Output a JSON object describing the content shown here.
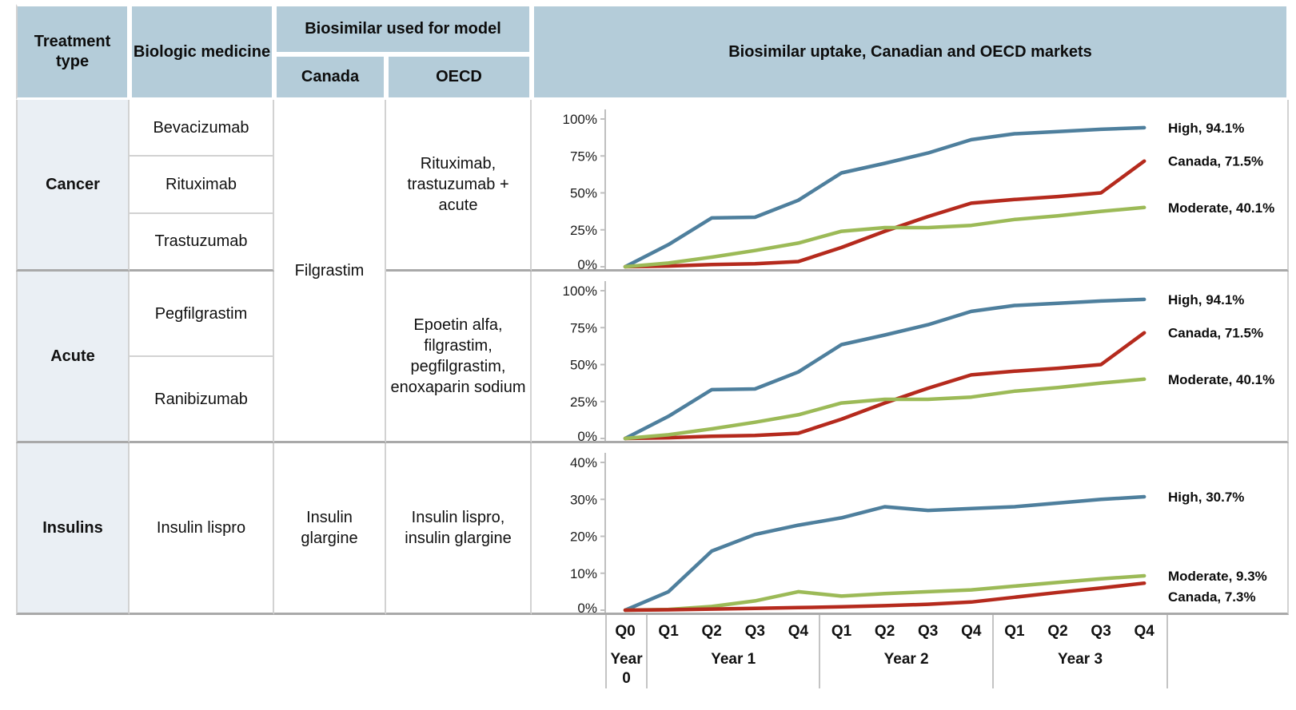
{
  "table": {
    "headers": {
      "treatment_type": "Treatment type",
      "biologic_medicine": "Biologic medicine",
      "biosimilar_model": "Biosimilar used for model",
      "canada": "Canada",
      "oecd": "OECD",
      "uptake": "Biosimilar uptake, Canadian and OECD markets"
    },
    "canada_spanning": "Filgrastim",
    "rows": [
      {
        "treatment": "Cancer",
        "biologics": [
          "Bevacizumab",
          "Rituximab",
          "Trastuzumab"
        ],
        "oecd": "Rituximab, trastuzumab + acute"
      },
      {
        "treatment": "Acute",
        "biologics": [
          "Pegfilgrastim",
          "Ranibizumab"
        ],
        "oecd": "Epoetin alfa, filgrastim, pegfilgrastim, enoxaparin sodium"
      },
      {
        "treatment": "Insulins",
        "biologics": [
          "Insulin lispro"
        ],
        "canada": "Insulin glargine",
        "oecd": "Insulin lispro, insulin glargine"
      }
    ]
  },
  "axis": {
    "quarters": [
      "Q0",
      "Q1",
      "Q2",
      "Q3",
      "Q4",
      "Q1",
      "Q2",
      "Q3",
      "Q4",
      "Q1",
      "Q2",
      "Q3",
      "Q4"
    ],
    "year_groups": [
      {
        "label": "Year 0",
        "quarters": 1
      },
      {
        "label": "Year 1",
        "quarters": 4
      },
      {
        "label": "Year 2",
        "quarters": 4
      },
      {
        "label": "Year 3",
        "quarters": 4
      }
    ]
  },
  "colors": {
    "high": "#4e7f9d",
    "canada": "#b52a1d",
    "moderate": "#9cba57",
    "header_bg": "#b4ccd9",
    "rowlabel_bg": "#eaeff4",
    "axis_gray": "#bfbfbf"
  },
  "chart_data": [
    {
      "type": "line",
      "title": "Biosimilar uptake, cancer (rituximab, trastuzumab + acute model)",
      "x": [
        "Y0Q0",
        "Y1Q1",
        "Y1Q2",
        "Y1Q3",
        "Y1Q4",
        "Y2Q1",
        "Y2Q2",
        "Y2Q3",
        "Y2Q4",
        "Y3Q1",
        "Y3Q2",
        "Y3Q3",
        "Y3Q4"
      ],
      "ylim": [
        0,
        100
      ],
      "yticks": [
        100,
        75,
        50,
        25,
        0
      ],
      "series": [
        {
          "name": "High",
          "color": "#4e7f9d",
          "end_label": "High, 94.1%",
          "values": [
            0,
            15,
            33,
            33.5,
            45,
            63.5,
            70,
            77,
            86,
            90,
            91.5,
            93,
            94.1
          ]
        },
        {
          "name": "Canada",
          "color": "#b52a1d",
          "end_label": "Canada, 71.5%",
          "values": [
            0,
            0.5,
            1.5,
            2,
            3.5,
            13,
            24,
            34,
            43,
            45.5,
            47.5,
            50,
            71.5
          ]
        },
        {
          "name": "Moderate",
          "color": "#9cba57",
          "end_label": "Moderate, 40.1%",
          "values": [
            0,
            2.5,
            6.5,
            11,
            16,
            24,
            26.5,
            26.5,
            28,
            32,
            34.5,
            37.5,
            40.1
          ]
        }
      ]
    },
    {
      "type": "line",
      "title": "Biosimilar uptake, acute (epoetin alfa, filgrastim, pegfilgrastim, enoxaparin sodium model)",
      "x": [
        "Y0Q0",
        "Y1Q1",
        "Y1Q2",
        "Y1Q3",
        "Y1Q4",
        "Y2Q1",
        "Y2Q2",
        "Y2Q3",
        "Y2Q4",
        "Y3Q1",
        "Y3Q2",
        "Y3Q3",
        "Y3Q4"
      ],
      "ylim": [
        0,
        100
      ],
      "yticks": [
        100,
        75,
        50,
        25,
        0
      ],
      "series": [
        {
          "name": "High",
          "color": "#4e7f9d",
          "end_label": "High, 94.1%",
          "values": [
            0,
            15,
            33,
            33.5,
            45,
            63.5,
            70,
            77,
            86,
            90,
            91.5,
            93,
            94.1
          ]
        },
        {
          "name": "Canada",
          "color": "#b52a1d",
          "end_label": "Canada, 71.5%",
          "values": [
            0,
            0.5,
            1.5,
            2,
            3.5,
            13,
            24,
            34,
            43,
            45.5,
            47.5,
            50,
            71.5
          ]
        },
        {
          "name": "Moderate",
          "color": "#9cba57",
          "end_label": "Moderate, 40.1%",
          "values": [
            0,
            2.5,
            6.5,
            11,
            16,
            24,
            26.5,
            26.5,
            28,
            32,
            34.5,
            37.5,
            40.1
          ]
        }
      ]
    },
    {
      "type": "line",
      "title": "Biosimilar uptake, insulins (insulin lispro, insulin glargine model)",
      "x": [
        "Y0Q0",
        "Y1Q1",
        "Y1Q2",
        "Y1Q3",
        "Y1Q4",
        "Y2Q1",
        "Y2Q2",
        "Y2Q3",
        "Y2Q4",
        "Y3Q1",
        "Y3Q2",
        "Y3Q3",
        "Y3Q4"
      ],
      "ylim": [
        0,
        40
      ],
      "yticks": [
        40,
        30,
        20,
        10,
        0
      ],
      "series": [
        {
          "name": "High",
          "color": "#4e7f9d",
          "end_label": "High, 30.7%",
          "values": [
            0,
            5,
            16,
            20.5,
            23,
            25,
            28,
            27,
            27.5,
            28,
            29,
            30,
            30.7
          ]
        },
        {
          "name": "Moderate",
          "color": "#9cba57",
          "end_label": "Moderate, 9.3%",
          "values": [
            0,
            0.2,
            1,
            2.5,
            5,
            3.8,
            4.5,
            5,
            5.5,
            6.5,
            7.5,
            8.5,
            9.3
          ]
        },
        {
          "name": "Canada",
          "color": "#b52a1d",
          "end_label": "Canada, 7.3%",
          "values": [
            0,
            0.1,
            0.3,
            0.5,
            0.7,
            0.9,
            1.2,
            1.6,
            2.2,
            3.5,
            4.8,
            6,
            7.3
          ]
        }
      ]
    }
  ]
}
